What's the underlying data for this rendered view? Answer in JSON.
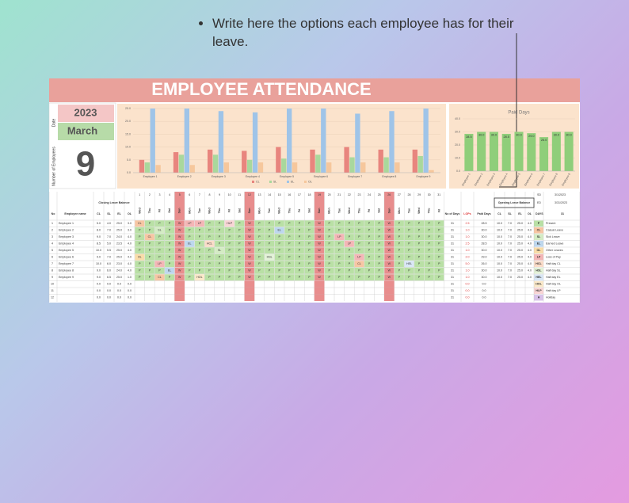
{
  "annotation": "Write here the options each employee has for their leave.",
  "header": {
    "title": "EMPLOYEE ATTENDANCE",
    "date_label": "Date",
    "year": "2023",
    "month": "March",
    "employees_label": "Number of Employees",
    "employee_count": "9"
  },
  "chart_data": [
    {
      "type": "bar",
      "categories": [
        "Employee 1",
        "Employee 2",
        "Employee 3",
        "Employee 4",
        "Employee 5",
        "Employee 6",
        "Employee 7",
        "Employee 8",
        "Employee 9"
      ],
      "series": [
        {
          "name": "CL",
          "color": "#e8857e",
          "values": [
            5,
            8,
            9,
            8.5,
            10,
            9,
            10,
            9,
            9
          ]
        },
        {
          "name": "SL",
          "color": "#a9d89c",
          "values": [
            4,
            7,
            7,
            5,
            5.5,
            7,
            6,
            6,
            6.5
          ]
        },
        {
          "name": "EL",
          "color": "#9fc4e8",
          "values": [
            25,
            25,
            24,
            23.5,
            25,
            25,
            23,
            24,
            25
          ]
        },
        {
          "name": "OL",
          "color": "#f6c79c",
          "values": [
            3,
            3,
            4,
            4,
            4,
            4,
            4,
            4,
            1
          ]
        }
      ],
      "ylim": [
        0,
        25
      ],
      "yticks": [
        {
          "value": 0,
          "label": "0.0"
        },
        {
          "value": 5,
          "label": "5.0"
        },
        {
          "value": 10,
          "label": "10.0"
        },
        {
          "value": 15,
          "label": "15.0"
        },
        {
          "value": 20,
          "label": "20.0"
        },
        {
          "value": 25,
          "label": "25.0"
        }
      ],
      "legend": "bottom"
    },
    {
      "type": "bar",
      "title": "Paid Days",
      "categories": [
        "Employee 1",
        "Employee 2",
        "Employee 3",
        "Employee 4",
        "Employee 5",
        "Employee 6",
        "Employee 7",
        "Employee 8",
        "Employee 9"
      ],
      "values": [
        28.5,
        30,
        30,
        28.5,
        30,
        29,
        26,
        30,
        30
      ],
      "value_labels": [
        "28.5",
        "30.0",
        "30.0",
        "28.5",
        "30.0",
        "29.0",
        "26.0",
        "30.0",
        "30.0"
      ],
      "color": "#8fce7a",
      "ylim": [
        0,
        40
      ],
      "yticks": [
        {
          "value": 0,
          "label": "0.0"
        },
        {
          "value": 10,
          "label": "10.0"
        },
        {
          "value": 20,
          "label": "20.0"
        },
        {
          "value": 30,
          "label": "30.0"
        },
        {
          "value": 40,
          "label": "40.0"
        }
      ]
    }
  ],
  "table": {
    "start_label": "SD",
    "start_date": "3/1/2023",
    "end_label": "ED",
    "end_date": "3/31/2023",
    "days_label": "DAYS",
    "days_count": "31",
    "columns": {
      "no": "No",
      "name": "Employee name",
      "closing": "Closing Leave Balance",
      "leave_types": [
        "CL",
        "SL",
        "EL",
        "OL"
      ],
      "days": "No of Days",
      "lops": "LOPs",
      "paid": "Paid Days",
      "opening": "Opening Leave Balance"
    },
    "day_numbers": [
      1,
      2,
      3,
      4,
      5,
      6,
      7,
      8,
      9,
      10,
      11,
      12,
      13,
      14,
      15,
      16,
      17,
      18,
      19,
      20,
      21,
      22,
      23,
      24,
      25,
      26,
      27,
      28,
      29,
      30,
      31
    ],
    "weekdays": [
      "Wed",
      "Thu",
      "Fri",
      "Sat",
      "Sun",
      "Mon",
      "Tue",
      "Wed",
      "Thu",
      "Fri",
      "Sat",
      "Sun",
      "Mon",
      "Tue",
      "Wed",
      "Thu",
      "Fri",
      "Sat",
      "Sun",
      "Mon",
      "Tue",
      "Wed",
      "Thu",
      "Fri",
      "Sat",
      "Sun",
      "Mon",
      "Tue",
      "Wed",
      "Thu",
      "Fri"
    ],
    "weekend": {
      "code": "W",
      "color": "#e88d8d"
    },
    "rows": [
      {
        "no": "1",
        "name": "Employee 1",
        "closing": [
          "5.0",
          "4.0",
          "25.0",
          "3.0"
        ],
        "days": "31",
        "lops": "2.5",
        "paid": "28.5",
        "opening": [
          "10.0",
          "7.0",
          "25.0",
          "4.0"
        ],
        "attendance": [
          "CL",
          "P",
          "P",
          "P",
          "W",
          "LP",
          "LP",
          "P",
          "P",
          "HLP",
          "P",
          "W",
          "P",
          "P",
          "P",
          "P",
          "P",
          "P",
          "W",
          "P",
          "P",
          "P",
          "P",
          "P",
          "P",
          "W",
          "P",
          "P",
          "P",
          "P",
          "P"
        ]
      },
      {
        "no": "2",
        "name": "Employee 2",
        "closing": [
          "8.0",
          "7.0",
          "25.0",
          "3.0"
        ],
        "days": "31",
        "lops": "1.0",
        "paid": "30.0",
        "opening": [
          "10.0",
          "7.0",
          "25.0",
          "4.0"
        ],
        "attendance": [
          "P",
          "P",
          "SL",
          "P",
          "W",
          "P",
          "P",
          "P",
          "P",
          "P",
          "P",
          "W",
          "P",
          "P",
          "EL",
          "P",
          "P",
          "P",
          "W",
          "P",
          "P",
          "P",
          "P",
          "P",
          "P",
          "W",
          "P",
          "P",
          "P",
          "P",
          "P"
        ]
      },
      {
        "no": "3",
        "name": "Employee 3",
        "closing": [
          "9.0",
          "7.0",
          "24.0",
          "4.0"
        ],
        "days": "31",
        "lops": "1.0",
        "paid": "30.0",
        "opening": [
          "10.0",
          "7.0",
          "25.0",
          "4.0"
        ],
        "attendance": [
          "P",
          "CL",
          "P",
          "P",
          "W",
          "P",
          "P",
          "P",
          "P",
          "P",
          "P",
          "W",
          "P",
          "P",
          "P",
          "P",
          "P",
          "P",
          "W",
          "P",
          "LP",
          "P",
          "P",
          "P",
          "P",
          "W",
          "P",
          "P",
          "P",
          "P",
          "P"
        ]
      },
      {
        "no": "4",
        "name": "Employee 4",
        "closing": [
          "8.5",
          "5.0",
          "23.5",
          "4.0"
        ],
        "days": "31",
        "lops": "2.5",
        "paid": "28.5",
        "opening": [
          "10.0",
          "7.0",
          "25.0",
          "4.0"
        ],
        "attendance": [
          "P",
          "P",
          "P",
          "P",
          "W",
          "EL",
          "P",
          "HCL",
          "P",
          "P",
          "P",
          "W",
          "P",
          "P",
          "P",
          "P",
          "P",
          "P",
          "W",
          "P",
          "P",
          "LP",
          "P",
          "P",
          "P",
          "W",
          "P",
          "P",
          "P",
          "P",
          "P"
        ]
      },
      {
        "no": "5",
        "name": "Employee 5",
        "closing": [
          "10.0",
          "5.5",
          "25.0",
          "4.0"
        ],
        "days": "31",
        "lops": "1.0",
        "paid": "30.0",
        "opening": [
          "10.0",
          "7.0",
          "25.0",
          "4.0"
        ],
        "attendance": [
          "P",
          "P",
          "P",
          "P",
          "W",
          "P",
          "P",
          "P",
          "SL",
          "P",
          "P",
          "W",
          "P",
          "P",
          "P",
          "P",
          "P",
          "P",
          "W",
          "P",
          "P",
          "P",
          "P",
          "P",
          "P",
          "W",
          "P",
          "P",
          "P",
          "P",
          "P"
        ]
      },
      {
        "no": "6",
        "name": "Employee 6",
        "closing": [
          "9.0",
          "7.0",
          "25.0",
          "4.0"
        ],
        "days": "31",
        "lops": "2.0",
        "paid": "29.0",
        "opening": [
          "10.0",
          "7.0",
          "25.0",
          "4.0"
        ],
        "attendance": [
          "OL",
          "P",
          "P",
          "P",
          "W",
          "P",
          "P",
          "P",
          "P",
          "P",
          "P",
          "W",
          "P",
          "HSL",
          "P",
          "P",
          "P",
          "P",
          "W",
          "P",
          "P",
          "P",
          "LP",
          "P",
          "P",
          "W",
          "P",
          "P",
          "P",
          "P",
          "P"
        ]
      },
      {
        "no": "7",
        "name": "Employee 7",
        "closing": [
          "10.0",
          "6.0",
          "23.0",
          "4.0"
        ],
        "days": "31",
        "lops": "5.0",
        "paid": "26.0",
        "opening": [
          "10.0",
          "7.0",
          "25.0",
          "4.0"
        ],
        "attendance": [
          "P",
          "P",
          "LP",
          "P",
          "W",
          "P",
          "P",
          "P",
          "P",
          "P",
          "P",
          "W",
          "P",
          "P",
          "P",
          "P",
          "P",
          "P",
          "W",
          "P",
          "P",
          "P",
          "CL",
          "P",
          "P",
          "W",
          "P",
          "HEL",
          "P",
          "P",
          "P"
        ]
      },
      {
        "no": "8",
        "name": "Employee 8",
        "closing": [
          "9.0",
          "6.0",
          "24.0",
          "4.0"
        ],
        "days": "31",
        "lops": "1.0",
        "paid": "30.0",
        "opening": [
          "10.0",
          "7.0",
          "25.0",
          "4.0"
        ],
        "attendance": [
          "P",
          "P",
          "P",
          "EL",
          "W",
          "P",
          "P",
          "P",
          "P",
          "P",
          "P",
          "W",
          "P",
          "P",
          "P",
          "P",
          "P",
          "P",
          "W",
          "P",
          "P",
          "P",
          "P",
          "P",
          "P",
          "W",
          "P",
          "P",
          "P",
          "P",
          "P"
        ]
      },
      {
        "no": "9",
        "name": "Employee 9",
        "closing": [
          "9.0",
          "6.5",
          "25.0",
          "1.0"
        ],
        "days": "31",
        "lops": "1.0",
        "paid": "30.0",
        "opening": [
          "10.0",
          "7.0",
          "25.0",
          "4.0"
        ],
        "attendance": [
          "P",
          "P",
          "CL",
          "P",
          "W",
          "P",
          "HOL",
          "P",
          "P",
          "P",
          "P",
          "W",
          "P",
          "P",
          "P",
          "P",
          "P",
          "P",
          "W",
          "P",
          "P",
          "P",
          "P",
          "P",
          "P",
          "W",
          "P",
          "P",
          "P",
          "P",
          "P"
        ]
      },
      {
        "no": "10",
        "closing": [
          "0.0",
          "0.0",
          "0.0",
          "0.0"
        ],
        "days": "31",
        "lops": "0.0",
        "paid": "0.0"
      },
      {
        "no": "11",
        "closing": [
          "0.0",
          "0.0",
          "0.0",
          "0.0"
        ],
        "days": "31",
        "lops": "0.0",
        "paid": "0.0"
      },
      {
        "no": "12",
        "closing": [
          "0.0",
          "0.0",
          "0.0",
          "0.0"
        ],
        "days": "31",
        "lops": "0.0",
        "paid": "0.0"
      }
    ],
    "legend": [
      {
        "code": "P",
        "label": "Present",
        "color": "#b9e0a5"
      },
      {
        "code": "CL",
        "label": "Casual Leave",
        "color": "#f7c6a3"
      },
      {
        "code": "SL",
        "label": "Sick Leave",
        "color": "#d4ecc4"
      },
      {
        "code": "EL",
        "label": "Earned Leave",
        "color": "#bdd7ee"
      },
      {
        "code": "OL",
        "label": "Other Leaves",
        "color": "#f9dca8"
      },
      {
        "code": "LP",
        "label": "Loss of Pay",
        "color": "#f4b6b6"
      },
      {
        "code": "HCL",
        "label": "Half day CL",
        "color": "#fbdcc8"
      },
      {
        "code": "HSL",
        "label": "Half day SL",
        "color": "#e3f2d8"
      },
      {
        "code": "HEL",
        "label": "Half day EL",
        "color": "#d9e7f6"
      },
      {
        "code": "HOL",
        "label": "Half day OL",
        "color": "#fbe9c9"
      },
      {
        "code": "HLP",
        "label": "Half day LP",
        "color": "#f9d5d5"
      },
      {
        "code": "H",
        "label": "Holiday",
        "color": "#d9c3ea"
      }
    ]
  }
}
